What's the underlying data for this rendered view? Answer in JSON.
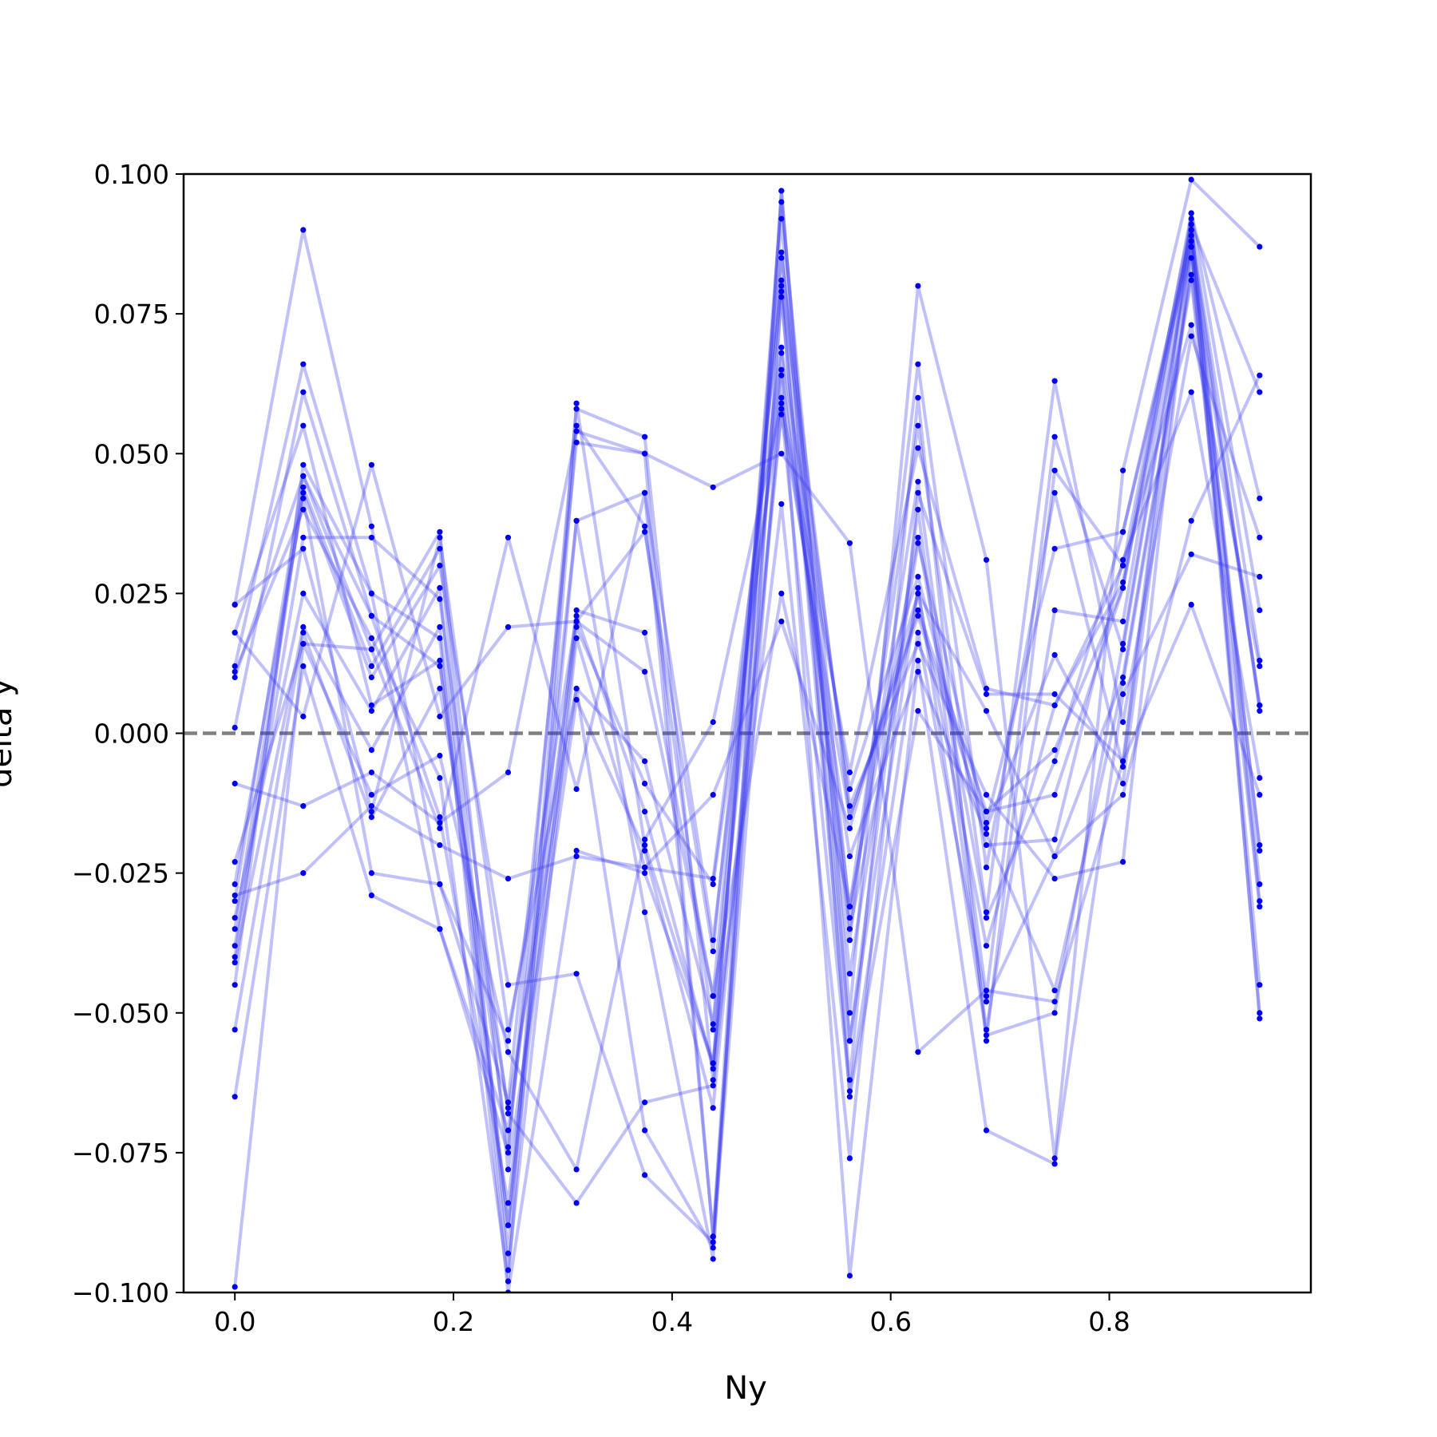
{
  "chart_data": {
    "type": "line",
    "xlabel": "Ny",
    "ylabel": "delta y",
    "xlim": [
      -0.0469,
      0.9844
    ],
    "ylim": [
      -0.1,
      0.1
    ],
    "x": [
      0.0,
      0.0625,
      0.125,
      0.1875,
      0.25,
      0.3125,
      0.375,
      0.4375,
      0.5,
      0.5625,
      0.625,
      0.6875,
      0.75,
      0.8125,
      0.875,
      0.9375
    ],
    "x_ticks": [
      0.0,
      0.2,
      0.4,
      0.6,
      0.8
    ],
    "x_tick_labels": [
      "0.0",
      "0.2",
      "0.4",
      "0.6",
      "0.8"
    ],
    "y_ticks": [
      -0.1,
      -0.075,
      -0.05,
      -0.025,
      0.0,
      0.025,
      0.05,
      0.075,
      0.1
    ],
    "y_tick_labels": [
      "−0.100",
      "−0.075",
      "−0.050",
      "−0.025",
      "0.000",
      "0.025",
      "0.050",
      "0.075",
      "0.100"
    ],
    "reference_line": {
      "y": 0.0,
      "style": "dashed",
      "color": "#808080"
    },
    "line_color": "#3333ee",
    "marker_color": "#0000ee",
    "line_alpha": 0.3,
    "grid": false,
    "series": [
      {
        "values": [
          0.023,
          0.09,
          0.037,
          -0.027,
          -0.066,
          0.052,
          0.05,
          -0.09,
          0.079,
          -0.062,
          0.06,
          -0.055,
          0.047,
          0.03,
          0.073,
          0.012
        ]
      },
      {
        "values": [
          0.012,
          0.066,
          0.025,
          -0.035,
          -0.075,
          0.058,
          0.053,
          -0.062,
          0.095,
          -0.033,
          0.045,
          -0.047,
          0.053,
          0.015,
          0.087,
          -0.045
        ]
      },
      {
        "values": [
          -0.03,
          0.046,
          0.021,
          -0.015,
          -0.084,
          0.022,
          0.018,
          -0.047,
          0.081,
          -0.043,
          0.034,
          -0.016,
          0.033,
          0.036,
          0.089,
          -0.03
        ]
      },
      {
        "values": [
          -0.035,
          0.043,
          0.01,
          0.03,
          -0.045,
          -0.043,
          -0.079,
          -0.091,
          0.078,
          -0.055,
          0.04,
          -0.053,
          0.022,
          0.02,
          0.091,
          -0.027
        ]
      },
      {
        "values": [
          0.011,
          0.04,
          0.017,
          -0.008,
          -0.098,
          0.055,
          0.037,
          -0.053,
          0.068,
          -0.035,
          0.025,
          -0.038,
          0.005,
          0.027,
          0.093,
          0.022
        ]
      },
      {
        "values": [
          -0.038,
          0.035,
          0.035,
          0.024,
          -0.068,
          -0.084,
          -0.066,
          -0.063,
          0.058,
          -0.064,
          0.018,
          -0.048,
          -0.022,
          0.01,
          0.082,
          -0.02
        ]
      },
      {
        "values": [
          0.018,
          0.055,
          0.005,
          0.013,
          -0.088,
          0.038,
          0.043,
          -0.037,
          0.065,
          -0.031,
          0.055,
          -0.032,
          0.063,
          0.002,
          0.071,
          0.035
        ]
      },
      {
        "values": [
          -0.04,
          0.044,
          0.012,
          0.033,
          -0.093,
          0.059,
          -0.02,
          -0.059,
          0.086,
          -0.037,
          0.066,
          -0.024,
          0.043,
          -0.006,
          0.09,
          0.004
        ]
      },
      {
        "values": [
          -0.045,
          0.048,
          0.025,
          0.017,
          -0.1,
          -0.021,
          -0.025,
          -0.059,
          0.041,
          -0.076,
          0.043,
          0.007,
          0.007,
          -0.005,
          0.093,
          0.042
        ]
      },
      {
        "values": [
          0.01,
          0.046,
          0.015,
          0.036,
          -0.078,
          0.006,
          -0.021,
          -0.067,
          0.057,
          -0.015,
          0.022,
          -0.014,
          -0.003,
          0.026,
          0.091,
          0.061
        ]
      },
      {
        "values": [
          -0.033,
          0.025,
          0.004,
          0.026,
          -0.096,
          0.017,
          -0.024,
          -0.026,
          0.069,
          -0.01,
          0.028,
          -0.02,
          -0.019,
          0.031,
          0.061,
          -0.008
        ]
      },
      {
        "values": [
          -0.041,
          0.019,
          -0.003,
          0.019,
          -0.088,
          0.019,
          -0.009,
          -0.027,
          0.06,
          -0.022,
          0.011,
          -0.018,
          -0.046,
          0.009,
          0.081,
          -0.031
        ]
      },
      {
        "values": [
          0.001,
          0.061,
          0.021,
          0.012,
          -0.074,
          0.038,
          -0.032,
          -0.094,
          0.097,
          -0.055,
          0.026,
          -0.054,
          -0.05,
          0.016,
          0.088,
          0.005
        ]
      },
      {
        "values": [
          -0.065,
          0.012,
          -0.029,
          -0.035,
          -0.071,
          0.02,
          0.036,
          -0.039,
          0.08,
          -0.013,
          0.016,
          -0.011,
          -0.026,
          -0.023,
          0.087,
          -0.05
        ]
      },
      {
        "values": [
          0.023,
          0.033,
          -0.014,
          0.035,
          -0.053,
          0.008,
          -0.071,
          -0.092,
          0.064,
          -0.097,
          0.013,
          -0.071,
          -0.077,
          0.007,
          0.032,
          0.028
        ]
      },
      {
        "values": [
          -0.027,
          0.042,
          -0.025,
          -0.027,
          -0.055,
          0.021,
          -0.014,
          -0.06,
          0.092,
          -0.065,
          0.004,
          -0.014,
          -0.011,
          0.026,
          0.09,
          0.013
        ]
      },
      {
        "values": [
          -0.053,
          0.018,
          -0.015,
          0.008,
          -0.067,
          0.008,
          -0.005,
          -0.052,
          0.085,
          -0.015,
          0.021,
          -0.017,
          0.014,
          -0.009,
          0.085,
          0.005
        ]
      },
      {
        "values": [
          -0.099,
          0.016,
          -0.011,
          -0.004,
          -0.057,
          -0.078,
          -0.019,
          0.002,
          0.059,
          -0.007,
          0.051,
          0.008,
          0.005,
          0.03,
          0.092,
          -0.051
        ]
      },
      {
        "values": [
          -0.029,
          -0.025,
          -0.013,
          -0.02,
          -0.026,
          -0.022,
          -0.024,
          -0.011,
          0.02,
          -0.017,
          0.025,
          0.004,
          -0.022,
          -0.011,
          0.038,
          0.064
        ]
      },
      {
        "values": [
          -0.009,
          -0.013,
          -0.007,
          -0.016,
          -0.007,
          0.054,
          0.05,
          0.044,
          0.05,
          0.034,
          -0.057,
          -0.046,
          -0.048,
          -0.005,
          0.023,
          -0.011
        ]
      },
      {
        "values": [
          0.018,
          0.003,
          0.048,
          0.003,
          0.019,
          0.02,
          0.011,
          -0.047,
          0.025,
          -0.031,
          0.035,
          -0.033,
          -0.005,
          0.036,
          0.087,
          -0.021
        ]
      },
      {
        "values": [
          -0.023,
          0.016,
          0.015,
          -0.017,
          0.035,
          -0.01,
          0.043,
          -0.09,
          0.097,
          -0.05,
          0.08,
          0.031,
          -0.076,
          0.047,
          0.099,
          0.087
        ]
      }
    ]
  }
}
